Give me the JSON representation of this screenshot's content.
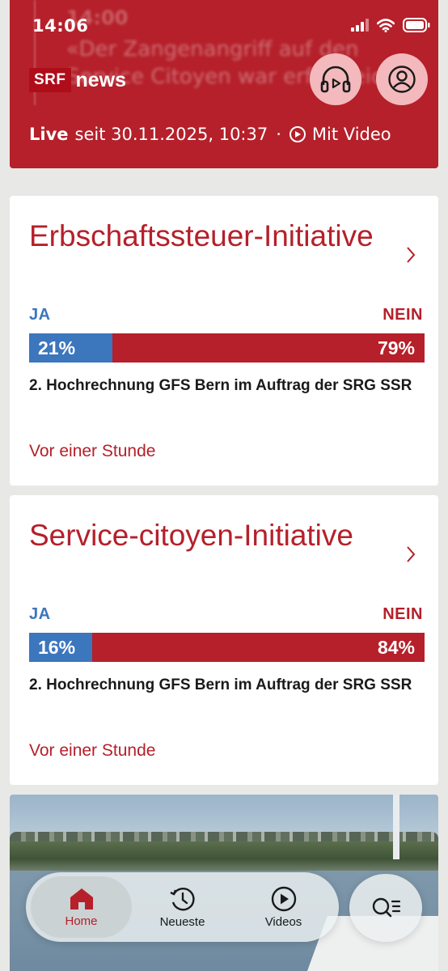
{
  "status_bar": {
    "time": "14:06"
  },
  "live_ticker": {
    "entry_time": "14:00",
    "entry_text": "«Der Zangenangriff auf den Service Citoyen war erfolgreich»",
    "brand_srf": "SRF",
    "brand_news": "news",
    "live_word": "Live",
    "since_text": "seit 30.11.2025, 10:37",
    "separator": "·",
    "video_label": "Mit Video"
  },
  "votes": [
    {
      "title": "Erbschaftssteuer-Initiative",
      "ja_label": "JA",
      "nein_label": "NEIN",
      "ja_percent": 21,
      "nein_percent": 79,
      "ja_text": "21%",
      "nein_text": "79%",
      "source": "2. Hochrechnung GFS Bern im Auftrag der SRG SSR",
      "time": "Vor einer Stunde"
    },
    {
      "title": "Service-citoyen-Initiative",
      "ja_label": "JA",
      "nein_label": "NEIN",
      "ja_percent": 16,
      "nein_percent": 84,
      "ja_text": "16%",
      "nein_text": "84%",
      "source": "2. Hochrechnung GFS Bern im Auftrag der SRG SSR",
      "time": "Vor einer Stunde"
    }
  ],
  "tabs": [
    {
      "label": "Home",
      "icon": "home-icon",
      "active": true
    },
    {
      "label": "Neueste",
      "icon": "clock-icon",
      "active": false
    },
    {
      "label": "Videos",
      "icon": "play-icon",
      "active": false
    }
  ],
  "colors": {
    "brand_red": "#b5202a",
    "ja_blue": "#3c76bd"
  }
}
